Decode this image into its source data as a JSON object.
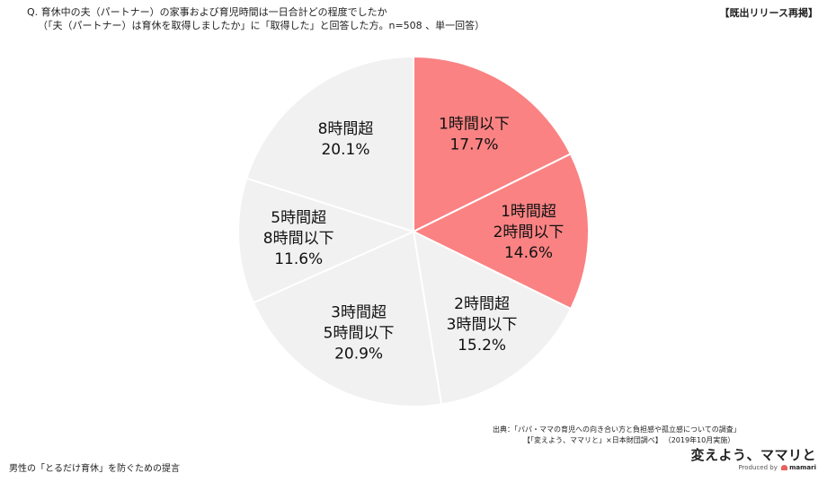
{
  "header": {
    "question_line1": "Q. 育休中の夫（パートナー）の家事および育児時間は一日合計どの程度でしたか",
    "question_line2": "（「夫（パートナー）は育休を取得しましたか」に「取得した」と回答した方。n=508 、単一回答）",
    "tag": "【既出リリース再掲】"
  },
  "chart_data": {
    "type": "pie",
    "start_angle_deg": 0,
    "direction": "clockwise",
    "slices": [
      {
        "label": [
          "1時間以下"
        ],
        "pct_label": "17.7%",
        "value": 17.7,
        "color": "#fa8283"
      },
      {
        "label": [
          "1時間超",
          "2時間以下"
        ],
        "pct_label": "14.6%",
        "value": 14.6,
        "color": "#fa8283"
      },
      {
        "label": [
          "2時間超",
          "3時間以下"
        ],
        "pct_label": "15.2%",
        "value": 15.2,
        "color": "#f1f1f1"
      },
      {
        "label": [
          "3時間超",
          "5時間以下"
        ],
        "pct_label": "20.9%",
        "value": 20.9,
        "color": "#f1f1f1"
      },
      {
        "label": [
          "5時間超",
          "8時間以下"
        ],
        "pct_label": "11.6%",
        "value": 11.6,
        "color": "#f1f1f1"
      },
      {
        "label": [
          "8時間超"
        ],
        "pct_label": "20.1%",
        "value": 20.1,
        "color": "#f1f1f1"
      }
    ]
  },
  "source": {
    "line1": "出典：「パパ・ママの育児への向き合い方と負担感や孤立感についての調査」",
    "line2": "【「変えよう、ママリと」×日本財団調べ】",
    "line3": "（2019年10月実施）"
  },
  "footer": {
    "text": "男性の「とるだけ育休」を防ぐための提言"
  },
  "logo": {
    "main": "変えよう、ママリと",
    "produced_by": "Produced by",
    "brand": "mamari"
  }
}
